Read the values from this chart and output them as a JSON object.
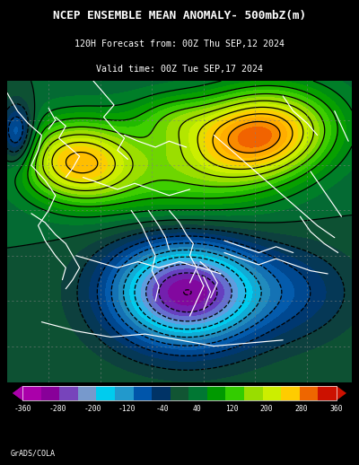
{
  "title_line1": "NCEP ENSEMBLE MEAN ANOMALY- 500mbZ(m)",
  "title_line2": "120H Forecast from: 00Z Thu SEP,12 2024",
  "title_line3": "Valid time: 00Z Tue SEP,17 2024",
  "credit": "GrADS/COLA",
  "bg_color": "#000000",
  "colorbar_block_colors": [
    "#aa00aa",
    "#880099",
    "#6633bb",
    "#6699cc",
    "#00ccee",
    "#3399cc",
    "#0055aa",
    "#003366",
    "#115533",
    "#007733",
    "#009900",
    "#33cc00",
    "#88dd00",
    "#ccee00",
    "#ffaa00",
    "#ee6600",
    "#cc2200"
  ],
  "colorbar_tick_labels": [
    "-360",
    "-280",
    "-200",
    "-120",
    "-40",
    "40",
    "120",
    "200",
    "280",
    "360"
  ],
  "map_anomaly_colors": [
    "#aa00aa",
    "#880099",
    "#6633bb",
    "#6699cc",
    "#00ccee",
    "#3399cc",
    "#2266aa",
    "#003366",
    "#115533",
    "#007733",
    "#009900",
    "#33cc00",
    "#88dd00",
    "#ccee00",
    "#ffcc00",
    "#ffaa00",
    "#ee6600",
    "#cc2200"
  ],
  "fig_width": 4.0,
  "fig_height": 5.18,
  "dpi": 100
}
